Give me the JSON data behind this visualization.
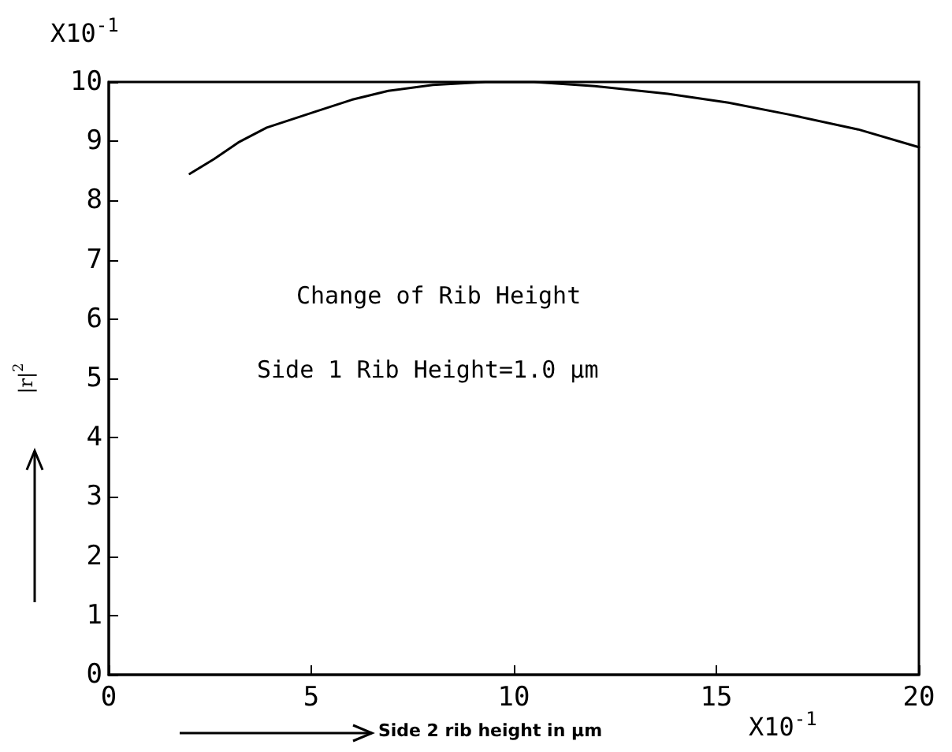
{
  "chart_data": {
    "type": "line",
    "xlabel": "Side 2 rib height in μm",
    "ylabel": "|r|$^{2}$",
    "annotations": [
      "Change of Rib Height",
      "Side 1 Rib Height=1.0 μm",
      "X10$^{-1}$",
      "X10$^{-1}$"
    ],
    "x": [
      2.0,
      2.6,
      3.2,
      3.9,
      5.1,
      6.0,
      6.9,
      8.0,
      9.3,
      10.5,
      12.0,
      13.8,
      15.3,
      16.8,
      18.5,
      20.0
    ],
    "series": [
      {
        "color": "#000000",
        "values": [
          8.45,
          8.7,
          8.98,
          9.23,
          9.5,
          9.7,
          9.85,
          9.95,
          10.0,
          10.0,
          9.93,
          9.8,
          9.65,
          9.45,
          9.2,
          8.9
        ]
      }
    ],
    "xlim": [
      0,
      20
    ],
    "xticks": [
      0,
      5,
      10,
      15,
      20
    ],
    "ylim": [
      0,
      10
    ],
    "yticks": [
      0,
      1,
      2,
      3,
      4,
      5,
      6,
      7,
      8,
      9,
      10
    ],
    "grid": false
  }
}
